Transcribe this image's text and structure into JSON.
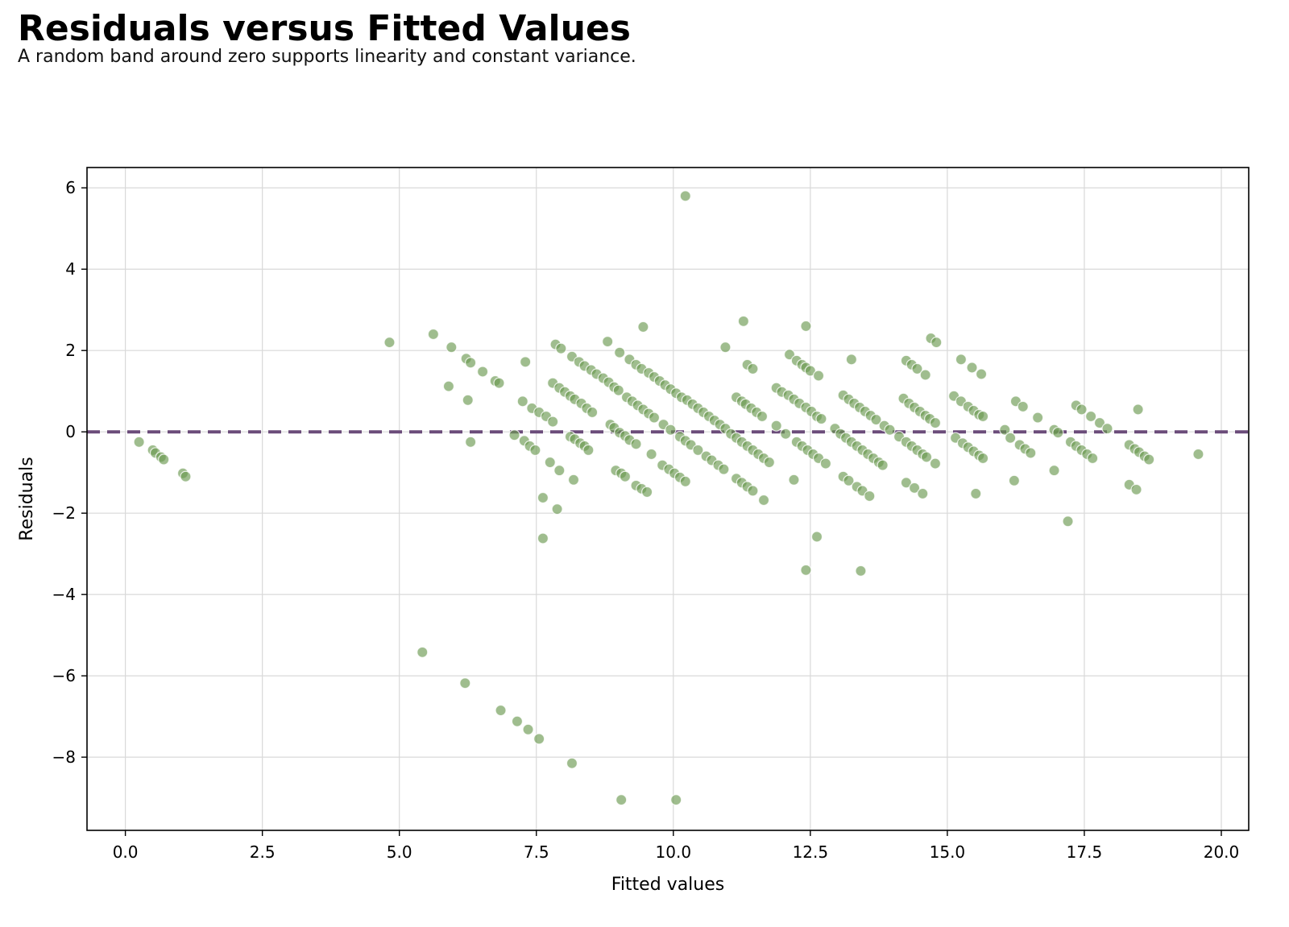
{
  "chart_data": {
    "type": "scatter",
    "title": "Residuals versus Fitted Values",
    "subtitle": "A random band around zero supports linearity and constant variance.",
    "xlabel": "Fitted values",
    "ylabel": "Residuals",
    "xlim": [
      -0.7,
      20.5
    ],
    "ylim": [
      -9.8,
      6.5
    ],
    "xticks": [
      0.0,
      2.5,
      5.0,
      7.5,
      10.0,
      12.5,
      15.0,
      17.5,
      20.0
    ],
    "xtick_labels": [
      "0.0",
      "2.5",
      "5.0",
      "7.5",
      "10.0",
      "12.5",
      "15.0",
      "17.5",
      "20.0"
    ],
    "yticks": [
      -8,
      -6,
      -4,
      -2,
      0,
      2,
      4,
      6
    ],
    "ytick_labels": [
      "−8",
      "−6",
      "−4",
      "−2",
      "0",
      "2",
      "4",
      "6"
    ],
    "grid": true,
    "reference_line": {
      "y": 0,
      "style": "dashed",
      "color": "#6b4c7a"
    },
    "point_color": "#6b9a52",
    "points": [
      [
        0.25,
        -0.25
      ],
      [
        0.5,
        -0.45
      ],
      [
        0.55,
        -0.52
      ],
      [
        0.65,
        -0.62
      ],
      [
        0.7,
        -0.68
      ],
      [
        1.05,
        -1.02
      ],
      [
        1.1,
        -1.1
      ],
      [
        4.82,
        2.2
      ],
      [
        5.62,
        2.4
      ],
      [
        5.95,
        2.08
      ],
      [
        5.9,
        1.12
      ],
      [
        6.22,
        1.8
      ],
      [
        6.3,
        1.7
      ],
      [
        6.25,
        0.78
      ],
      [
        6.3,
        -0.25
      ],
      [
        6.52,
        1.48
      ],
      [
        6.75,
        1.25
      ],
      [
        6.82,
        1.2
      ],
      [
        5.42,
        -5.42
      ],
      [
        6.2,
        -6.18
      ],
      [
        6.85,
        -6.85
      ],
      [
        7.15,
        -7.12
      ],
      [
        7.35,
        -7.32
      ],
      [
        7.55,
        -7.55
      ],
      [
        8.15,
        -8.15
      ],
      [
        9.05,
        -9.05
      ],
      [
        10.05,
        -9.05
      ],
      [
        7.3,
        1.72
      ],
      [
        7.25,
        0.75
      ],
      [
        7.42,
        0.58
      ],
      [
        7.55,
        0.48
      ],
      [
        7.68,
        0.38
      ],
      [
        7.8,
        0.25
      ],
      [
        7.1,
        -0.08
      ],
      [
        7.28,
        -0.22
      ],
      [
        7.38,
        -0.35
      ],
      [
        7.48,
        -0.45
      ],
      [
        7.75,
        -0.75
      ],
      [
        7.92,
        -0.95
      ],
      [
        8.18,
        -1.18
      ],
      [
        7.62,
        -1.62
      ],
      [
        7.88,
        -1.9
      ],
      [
        7.62,
        -2.62
      ],
      [
        7.85,
        2.15
      ],
      [
        7.95,
        2.05
      ],
      [
        8.15,
        1.85
      ],
      [
        8.28,
        1.72
      ],
      [
        8.38,
        1.62
      ],
      [
        8.5,
        1.52
      ],
      [
        8.6,
        1.42
      ],
      [
        8.72,
        1.32
      ],
      [
        8.82,
        1.22
      ],
      [
        8.92,
        1.1
      ],
      [
        9.0,
        1.02
      ],
      [
        7.8,
        1.2
      ],
      [
        7.92,
        1.08
      ],
      [
        8.02,
        0.98
      ],
      [
        8.12,
        0.88
      ],
      [
        8.2,
        0.8
      ],
      [
        8.32,
        0.7
      ],
      [
        8.42,
        0.58
      ],
      [
        8.52,
        0.48
      ],
      [
        8.12,
        -0.12
      ],
      [
        8.2,
        -0.18
      ],
      [
        8.3,
        -0.28
      ],
      [
        8.38,
        -0.35
      ],
      [
        8.45,
        -0.45
      ],
      [
        8.8,
        2.22
      ],
      [
        9.02,
        1.95
      ],
      [
        9.2,
        1.78
      ],
      [
        9.32,
        1.65
      ],
      [
        9.42,
        1.55
      ],
      [
        9.55,
        1.45
      ],
      [
        9.65,
        1.35
      ],
      [
        9.75,
        1.25
      ],
      [
        9.85,
        1.15
      ],
      [
        9.95,
        1.05
      ],
      [
        10.05,
        0.95
      ],
      [
        10.15,
        0.85
      ],
      [
        10.25,
        0.78
      ],
      [
        8.85,
        0.18
      ],
      [
        8.92,
        0.1
      ],
      [
        9.02,
        -0.02
      ],
      [
        9.12,
        -0.1
      ],
      [
        9.2,
        -0.2
      ],
      [
        9.32,
        -0.3
      ],
      [
        8.95,
        -0.95
      ],
      [
        9.05,
        -1.02
      ],
      [
        9.12,
        -1.1
      ],
      [
        9.32,
        -1.32
      ],
      [
        9.42,
        -1.4
      ],
      [
        9.52,
        -1.48
      ],
      [
        9.15,
        0.85
      ],
      [
        9.25,
        0.75
      ],
      [
        9.35,
        0.65
      ],
      [
        9.45,
        0.55
      ],
      [
        9.55,
        0.45
      ],
      [
        9.65,
        0.35
      ],
      [
        9.82,
        0.18
      ],
      [
        9.95,
        0.05
      ],
      [
        10.12,
        -0.12
      ],
      [
        10.22,
        -0.22
      ],
      [
        10.32,
        -0.32
      ],
      [
        10.45,
        -0.45
      ],
      [
        9.45,
        2.58
      ],
      [
        9.6,
        -0.55
      ],
      [
        9.8,
        -0.82
      ],
      [
        9.92,
        -0.92
      ],
      [
        10.02,
        -1.02
      ],
      [
        10.12,
        -1.12
      ],
      [
        10.22,
        -1.22
      ],
      [
        10.22,
        5.8
      ],
      [
        10.35,
        0.68
      ],
      [
        10.45,
        0.58
      ],
      [
        10.55,
        0.48
      ],
      [
        10.65,
        0.38
      ],
      [
        10.75,
        0.28
      ],
      [
        10.85,
        0.18
      ],
      [
        10.95,
        0.08
      ],
      [
        10.6,
        -0.6
      ],
      [
        10.7,
        -0.7
      ],
      [
        10.82,
        -0.82
      ],
      [
        10.92,
        -0.92
      ],
      [
        10.95,
        2.08
      ],
      [
        11.05,
        -0.05
      ],
      [
        11.15,
        -0.15
      ],
      [
        11.25,
        -0.25
      ],
      [
        11.35,
        -0.35
      ],
      [
        11.45,
        -0.45
      ],
      [
        11.55,
        -0.55
      ],
      [
        11.65,
        -0.65
      ],
      [
        11.75,
        -0.75
      ],
      [
        11.15,
        0.85
      ],
      [
        11.25,
        0.75
      ],
      [
        11.32,
        0.68
      ],
      [
        11.42,
        0.58
      ],
      [
        11.52,
        0.48
      ],
      [
        11.62,
        0.38
      ],
      [
        11.15,
        -1.15
      ],
      [
        11.25,
        -1.25
      ],
      [
        11.35,
        -1.35
      ],
      [
        11.45,
        -1.45
      ],
      [
        11.65,
        -1.68
      ],
      [
        11.28,
        2.72
      ],
      [
        11.35,
        1.65
      ],
      [
        11.45,
        1.55
      ],
      [
        11.88,
        1.08
      ],
      [
        11.98,
        0.98
      ],
      [
        11.88,
        0.15
      ],
      [
        12.05,
        -0.05
      ],
      [
        12.2,
        -1.18
      ],
      [
        12.12,
        1.9
      ],
      [
        12.25,
        1.75
      ],
      [
        12.35,
        1.65
      ],
      [
        12.42,
        1.58
      ],
      [
        12.5,
        1.5
      ],
      [
        12.65,
        1.38
      ],
      [
        12.1,
        0.9
      ],
      [
        12.2,
        0.8
      ],
      [
        12.3,
        0.7
      ],
      [
        12.42,
        0.6
      ],
      [
        12.52,
        0.5
      ],
      [
        12.62,
        0.38
      ],
      [
        12.7,
        0.32
      ],
      [
        12.25,
        -0.25
      ],
      [
        12.35,
        -0.35
      ],
      [
        12.45,
        -0.45
      ],
      [
        12.55,
        -0.55
      ],
      [
        12.65,
        -0.65
      ],
      [
        12.78,
        -0.78
      ],
      [
        12.42,
        2.6
      ],
      [
        12.42,
        -3.4
      ],
      [
        12.62,
        -2.58
      ],
      [
        13.42,
        -3.42
      ],
      [
        12.95,
        0.08
      ],
      [
        13.05,
        -0.05
      ],
      [
        13.15,
        -0.15
      ],
      [
        13.25,
        -0.25
      ],
      [
        13.35,
        -0.35
      ],
      [
        13.45,
        -0.45
      ],
      [
        13.55,
        -0.55
      ],
      [
        13.65,
        -0.65
      ],
      [
        13.75,
        -0.75
      ],
      [
        13.82,
        -0.82
      ],
      [
        13.1,
        0.9
      ],
      [
        13.2,
        0.8
      ],
      [
        13.3,
        0.7
      ],
      [
        13.4,
        0.6
      ],
      [
        13.5,
        0.5
      ],
      [
        13.6,
        0.4
      ],
      [
        13.7,
        0.3
      ],
      [
        13.85,
        0.15
      ],
      [
        13.95,
        0.05
      ],
      [
        13.1,
        -1.1
      ],
      [
        13.2,
        -1.2
      ],
      [
        13.35,
        -1.35
      ],
      [
        13.45,
        -1.45
      ],
      [
        13.58,
        -1.58
      ],
      [
        13.25,
        1.78
      ],
      [
        14.12,
        -0.12
      ],
      [
        14.25,
        -0.25
      ],
      [
        14.35,
        -0.35
      ],
      [
        14.45,
        -0.45
      ],
      [
        14.55,
        -0.55
      ],
      [
        14.62,
        -0.62
      ],
      [
        14.2,
        0.82
      ],
      [
        14.3,
        0.7
      ],
      [
        14.4,
        0.6
      ],
      [
        14.5,
        0.5
      ],
      [
        14.6,
        0.4
      ],
      [
        14.68,
        0.32
      ],
      [
        14.78,
        0.22
      ],
      [
        14.25,
        1.75
      ],
      [
        14.35,
        1.65
      ],
      [
        14.45,
        1.55
      ],
      [
        14.6,
        1.4
      ],
      [
        14.7,
        2.3
      ],
      [
        14.8,
        2.2
      ],
      [
        14.25,
        -1.25
      ],
      [
        14.4,
        -1.38
      ],
      [
        14.55,
        -1.52
      ],
      [
        14.78,
        -0.78
      ],
      [
        15.12,
        0.88
      ],
      [
        15.25,
        0.75
      ],
      [
        15.38,
        0.62
      ],
      [
        15.48,
        0.52
      ],
      [
        15.58,
        0.42
      ],
      [
        15.65,
        0.38
      ],
      [
        15.15,
        -0.15
      ],
      [
        15.28,
        -0.28
      ],
      [
        15.38,
        -0.38
      ],
      [
        15.48,
        -0.48
      ],
      [
        15.58,
        -0.58
      ],
      [
        15.65,
        -0.65
      ],
      [
        15.25,
        1.78
      ],
      [
        15.45,
        1.58
      ],
      [
        15.62,
        1.42
      ],
      [
        15.52,
        -1.52
      ],
      [
        16.05,
        0.05
      ],
      [
        16.15,
        -0.15
      ],
      [
        16.32,
        -0.32
      ],
      [
        16.42,
        -0.42
      ],
      [
        16.52,
        -0.52
      ],
      [
        16.25,
        0.75
      ],
      [
        16.38,
        0.62
      ],
      [
        16.65,
        0.35
      ],
      [
        16.22,
        -1.2
      ],
      [
        16.95,
        -0.95
      ],
      [
        16.95,
        0.05
      ],
      [
        17.02,
        -0.02
      ],
      [
        17.2,
        -2.2
      ],
      [
        17.25,
        -0.25
      ],
      [
        17.35,
        -0.35
      ],
      [
        17.45,
        -0.45
      ],
      [
        17.55,
        -0.55
      ],
      [
        17.65,
        -0.65
      ],
      [
        17.35,
        0.65
      ],
      [
        17.45,
        0.55
      ],
      [
        17.62,
        0.38
      ],
      [
        17.78,
        0.22
      ],
      [
        17.92,
        0.08
      ],
      [
        18.32,
        -0.32
      ],
      [
        18.42,
        -0.42
      ],
      [
        18.5,
        -0.5
      ],
      [
        18.6,
        -0.6
      ],
      [
        18.68,
        -0.68
      ],
      [
        18.32,
        -1.3
      ],
      [
        18.45,
        -1.42
      ],
      [
        18.48,
        0.55
      ],
      [
        19.58,
        -0.55
      ]
    ]
  }
}
